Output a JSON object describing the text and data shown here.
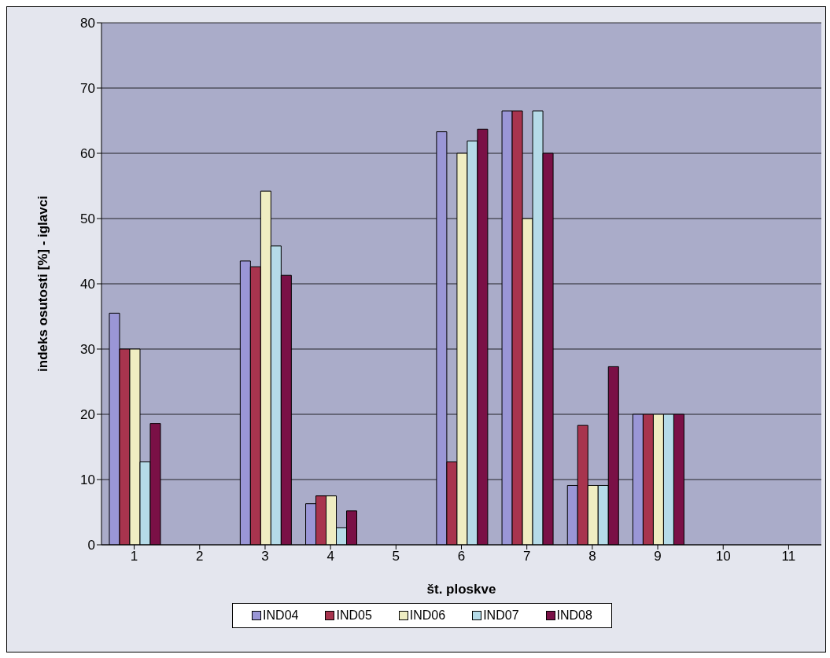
{
  "chart_data": {
    "type": "bar",
    "xlabel": "št. ploskve",
    "ylabel": "indeks osutosti [%] - iglavci",
    "categories": [
      "1",
      "2",
      "3",
      "4",
      "5",
      "6",
      "7",
      "8",
      "9",
      "10",
      "11"
    ],
    "series": [
      {
        "name": "IND04",
        "color": "#9a96d6",
        "values": [
          35.5,
          null,
          43.5,
          6.3,
          null,
          63.3,
          66.5,
          9.1,
          20,
          null,
          null
        ]
      },
      {
        "name": "IND05",
        "color": "#a8344e",
        "values": [
          30,
          null,
          42.6,
          7.5,
          null,
          12.7,
          66.5,
          18.3,
          20,
          null,
          null
        ]
      },
      {
        "name": "IND06",
        "color": "#efedc2",
        "values": [
          30,
          null,
          54.2,
          7.5,
          null,
          60,
          50,
          9.1,
          20,
          null,
          null
        ]
      },
      {
        "name": "IND07",
        "color": "#b5dbe8",
        "values": [
          12.7,
          null,
          45.8,
          2.6,
          null,
          61.9,
          66.5,
          9.1,
          20,
          null,
          null
        ]
      },
      {
        "name": "IND08",
        "color": "#7a1046",
        "values": [
          18.6,
          null,
          41.3,
          5.2,
          null,
          63.7,
          60,
          27.3,
          20,
          null,
          null
        ]
      }
    ],
    "ylim": [
      0,
      80
    ],
    "yticks": [
      0,
      10,
      20,
      30,
      40,
      50,
      60,
      70,
      80
    ],
    "grid": "y",
    "legend": "bottom"
  }
}
